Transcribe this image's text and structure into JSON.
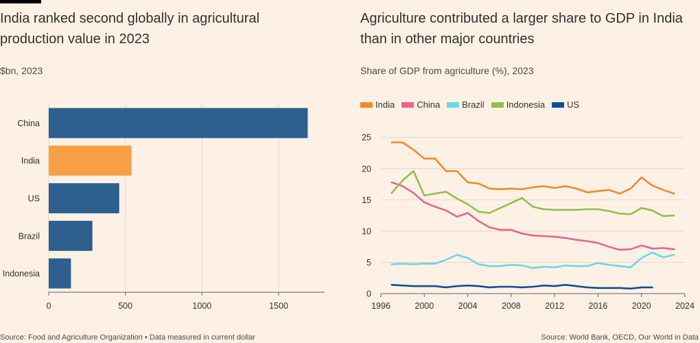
{
  "colors": {
    "background": "#fdf1e5",
    "grid": "#e4d8cc",
    "axis": "#66605c"
  },
  "left_chart": {
    "title": "India ranked second globally in agricultural production value in 2023",
    "subtitle": "$bn, 2023",
    "source": "Source: Food and Agriculture Organization • Data measured in current dollar"
  },
  "right_chart": {
    "title": "Agriculture contributed a larger share to GDP in India than in other major countries",
    "subtitle": "Share of GDP from agriculture (%), 2023",
    "source": "Source: World Bank, OECD, Our World in Data"
  },
  "chart_data": [
    {
      "type": "bar",
      "orientation": "horizontal",
      "title": "India ranked second globally in agricultural production value in 2023",
      "subtitle": "$bn, 2023",
      "categories": [
        "China",
        "India",
        "US",
        "Brazil",
        "Indonesia"
      ],
      "values": [
        1690,
        540,
        460,
        285,
        145
      ],
      "bar_colors": [
        "#2d5f8f",
        "#f79f46",
        "#2d5f8f",
        "#2d5f8f",
        "#2d5f8f"
      ],
      "xlim": [
        0,
        1800
      ],
      "xticks": [
        0,
        500,
        1000,
        1500
      ],
      "grid": true
    },
    {
      "type": "line",
      "title": "Agriculture contributed a larger share to GDP in India than in other major countries",
      "subtitle": "Share of GDP from agriculture (%), 2023",
      "xlim": [
        1996,
        2024
      ],
      "ylim": [
        0,
        27
      ],
      "xticks": [
        1996,
        2000,
        2004,
        2008,
        2012,
        2016,
        2020,
        2024
      ],
      "yticks": [
        0,
        5,
        10,
        15,
        20,
        25
      ],
      "grid": true,
      "legend_position": "top-left",
      "series": [
        {
          "name": "India",
          "color": "#f28a2b",
          "x": [
            1997,
            1998,
            1999,
            2000,
            2001,
            2002,
            2003,
            2004,
            2005,
            2006,
            2007,
            2008,
            2009,
            2010,
            2011,
            2012,
            2013,
            2014,
            2015,
            2016,
            2017,
            2018,
            2019,
            2020,
            2021,
            2022,
            2023
          ],
          "values": [
            24.2,
            24.2,
            23.0,
            21.6,
            21.6,
            19.6,
            19.6,
            17.8,
            17.6,
            16.8,
            16.7,
            16.8,
            16.7,
            17.0,
            17.2,
            16.9,
            17.2,
            16.8,
            16.2,
            16.4,
            16.6,
            16.0,
            16.8,
            18.6,
            17.3,
            16.6,
            16.0
          ]
        },
        {
          "name": "China",
          "color": "#e8638f",
          "x": [
            1997,
            1998,
            1999,
            2000,
            2001,
            2002,
            2003,
            2004,
            2005,
            2006,
            2007,
            2008,
            2009,
            2010,
            2011,
            2012,
            2013,
            2014,
            2015,
            2016,
            2017,
            2018,
            2019,
            2020,
            2021,
            2022,
            2023
          ],
          "values": [
            17.8,
            17.2,
            16.1,
            14.6,
            13.9,
            13.3,
            12.3,
            12.9,
            11.6,
            10.6,
            10.2,
            10.2,
            9.6,
            9.3,
            9.2,
            9.1,
            8.9,
            8.6,
            8.4,
            8.1,
            7.5,
            7.0,
            7.1,
            7.7,
            7.2,
            7.3,
            7.1
          ]
        },
        {
          "name": "Brazil",
          "color": "#6ad7e5",
          "x": [
            1997,
            1998,
            1999,
            2000,
            2001,
            2002,
            2003,
            2004,
            2005,
            2006,
            2007,
            2008,
            2009,
            2010,
            2011,
            2012,
            2013,
            2014,
            2015,
            2016,
            2017,
            2018,
            2019,
            2020,
            2021,
            2022,
            2023
          ],
          "values": [
            4.7,
            4.8,
            4.7,
            4.8,
            4.8,
            5.4,
            6.2,
            5.7,
            4.7,
            4.4,
            4.4,
            4.6,
            4.5,
            4.1,
            4.3,
            4.2,
            4.5,
            4.4,
            4.4,
            4.9,
            4.6,
            4.4,
            4.2,
            5.7,
            6.6,
            5.8,
            6.2
          ]
        },
        {
          "name": "Indonesia",
          "color": "#96bc4e",
          "x": [
            1997,
            1998,
            1999,
            2000,
            2001,
            2002,
            2003,
            2004,
            2005,
            2006,
            2007,
            2008,
            2009,
            2010,
            2011,
            2012,
            2013,
            2014,
            2015,
            2016,
            2017,
            2018,
            2019,
            2020,
            2021,
            2022,
            2023
          ],
          "values": [
            16.1,
            18.1,
            19.6,
            15.7,
            16.0,
            16.3,
            15.2,
            14.3,
            13.1,
            12.9,
            13.7,
            14.5,
            15.3,
            13.9,
            13.5,
            13.4,
            13.4,
            13.4,
            13.5,
            13.5,
            13.2,
            12.8,
            12.7,
            13.7,
            13.3,
            12.4,
            12.5
          ]
        },
        {
          "name": "US",
          "color": "#0d4f97",
          "x": [
            1997,
            1998,
            1999,
            2000,
            2001,
            2002,
            2003,
            2004,
            2005,
            2006,
            2007,
            2008,
            2009,
            2010,
            2011,
            2012,
            2013,
            2014,
            2015,
            2016,
            2017,
            2018,
            2019,
            2020,
            2021
          ],
          "values": [
            1.4,
            1.3,
            1.2,
            1.2,
            1.2,
            1.0,
            1.2,
            1.3,
            1.2,
            1.0,
            1.1,
            1.1,
            1.0,
            1.1,
            1.3,
            1.2,
            1.4,
            1.2,
            1.0,
            0.9,
            0.9,
            0.9,
            0.8,
            1.0,
            1.0
          ]
        }
      ]
    }
  ]
}
